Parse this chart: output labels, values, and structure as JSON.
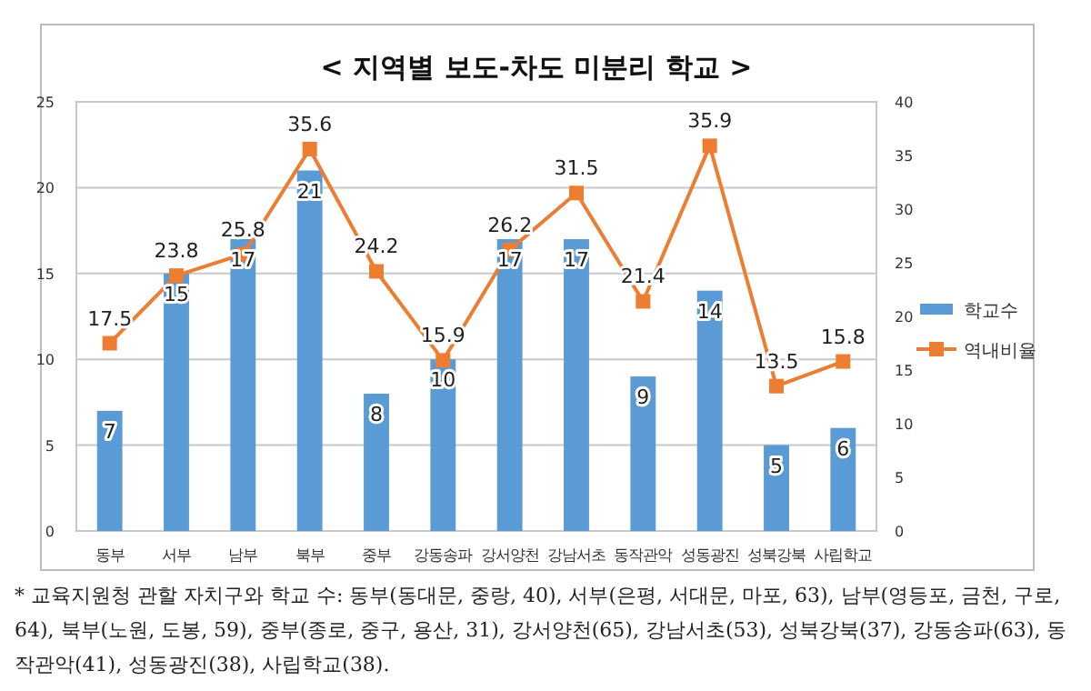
{
  "chart_data": {
    "type": "bar",
    "title": "< 지역별 보도-차도 미분리 학교 >",
    "categories": [
      "동부",
      "서부",
      "남부",
      "북부",
      "중부",
      "강동송파",
      "강서양천",
      "강남서초",
      "동작관악",
      "성동광진",
      "성북강북",
      "사립학교"
    ],
    "series": [
      {
        "name": "학교수",
        "color": "#5b9bd5",
        "values": [
          7,
          15,
          17,
          21,
          8,
          10,
          17,
          17,
          9,
          14,
          5,
          6
        ]
      },
      {
        "name": "역내비율",
        "type": "line",
        "axis": "y2",
        "color": "#ed7d31",
        "marker": "square",
        "values": [
          17.5,
          23.8,
          25.8,
          35.6,
          24.2,
          15.9,
          26.2,
          31.5,
          21.4,
          35.9,
          13.5,
          15.8
        ]
      }
    ],
    "ylim": [
      0,
      25
    ],
    "yticks": [
      0,
      5,
      10,
      15,
      20,
      25
    ],
    "y2lim": [
      0,
      40
    ],
    "y2ticks": [
      0,
      5,
      10,
      15,
      20,
      25,
      30,
      35,
      40
    ],
    "grid": "y",
    "legend": "right",
    "data_labels": true,
    "annotations": [
      "* 교육지원청 관할 자치구와 학교 수: 동부(동대문, 중랑, 40), 서부(은평, 서대문, 마포, 63), 남부(영등포, 금천, 구로, 64), 북부(노원, 도봉, 59), 중부(종로, 중구, 용산, 31), 강서양천(65), 강남서초(53), 성북강북(37), 강동송파(63), 동작관악(41), 성동광진(38), 사립학교(38)."
    ]
  }
}
